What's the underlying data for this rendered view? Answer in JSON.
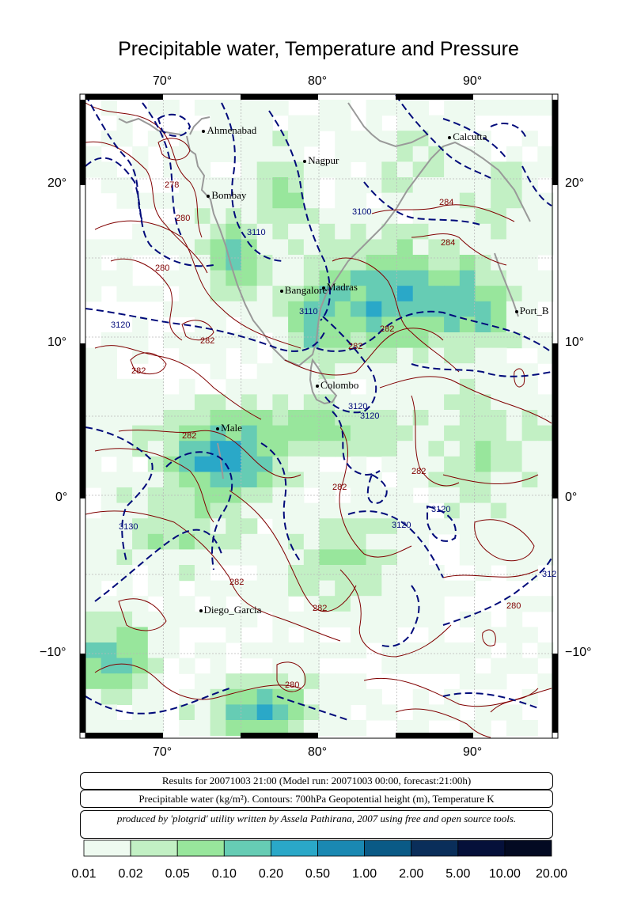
{
  "title": "Precipitable water, Temperature and Pressure",
  "map": {
    "lon_range": [
      65,
      95
    ],
    "lat_range": [
      -15,
      25
    ],
    "lon_ticks": [
      "70°",
      "80°",
      "90°"
    ],
    "lat_ticks": [
      "20°",
      "10°",
      "0°",
      "−10°"
    ],
    "gridlines": true
  },
  "cities": [
    {
      "name": "Ahmenabad",
      "lon": 72.6,
      "lat": 23.0
    },
    {
      "name": "Nagpur",
      "lon": 79.1,
      "lat": 21.1
    },
    {
      "name": "Calcutta",
      "lon": 88.4,
      "lat": 22.6
    },
    {
      "name": "Bombay",
      "lon": 72.9,
      "lat": 18.9
    },
    {
      "name": "Bangalore",
      "lon": 77.6,
      "lat": 12.9
    },
    {
      "name": "Madras",
      "lon": 80.3,
      "lat": 13.1
    },
    {
      "name": "Port_B",
      "lon": 92.7,
      "lat": 11.6
    },
    {
      "name": "Colombo",
      "lon": 79.9,
      "lat": 6.9
    },
    {
      "name": "Male",
      "lon": 73.5,
      "lat": 4.2
    },
    {
      "name": "Diego_Garcia",
      "lon": 72.4,
      "lat": -7.3
    }
  ],
  "contour_labels": {
    "temperature": [
      "278",
      "280",
      "280",
      "282",
      "282",
      "282",
      "282",
      "282",
      "284",
      "284",
      "282",
      "282",
      "282",
      "280",
      "280",
      "282"
    ],
    "geopotential": [
      "3100",
      "3110",
      "3110",
      "3120",
      "3120",
      "3120",
      "3120",
      "3130",
      "3120",
      "312"
    ]
  },
  "info": {
    "results": "Results for 20071003 21:00 (Model run: 20071003 00:00, forecast:21:00h)",
    "legend": "Precipitable water (kg/m²).  Contours: 700hPa Geopotential height (m), Temperature K",
    "credit": "produced by 'plotgrid' utility written by Assela Pathirana, 2007 using free and open source tools."
  },
  "colorbar": {
    "labels": [
      "0.01",
      "0.02",
      "0.05",
      "0.10",
      "0.20",
      "0.50",
      "1.00",
      "2.00",
      "5.00",
      "10.00",
      "20.00"
    ],
    "colors": [
      "#eefaf0",
      "#c2f0c4",
      "#98e69c",
      "#66ccb4",
      "#2aa8c8",
      "#1a88b2",
      "#0a5a86",
      "#0a2e5a",
      "#05103a",
      "#030a22"
    ]
  },
  "colors": {
    "temperature_contour": "#800000",
    "geopotential_contour": "#000a7a",
    "coastline": "#999999"
  }
}
